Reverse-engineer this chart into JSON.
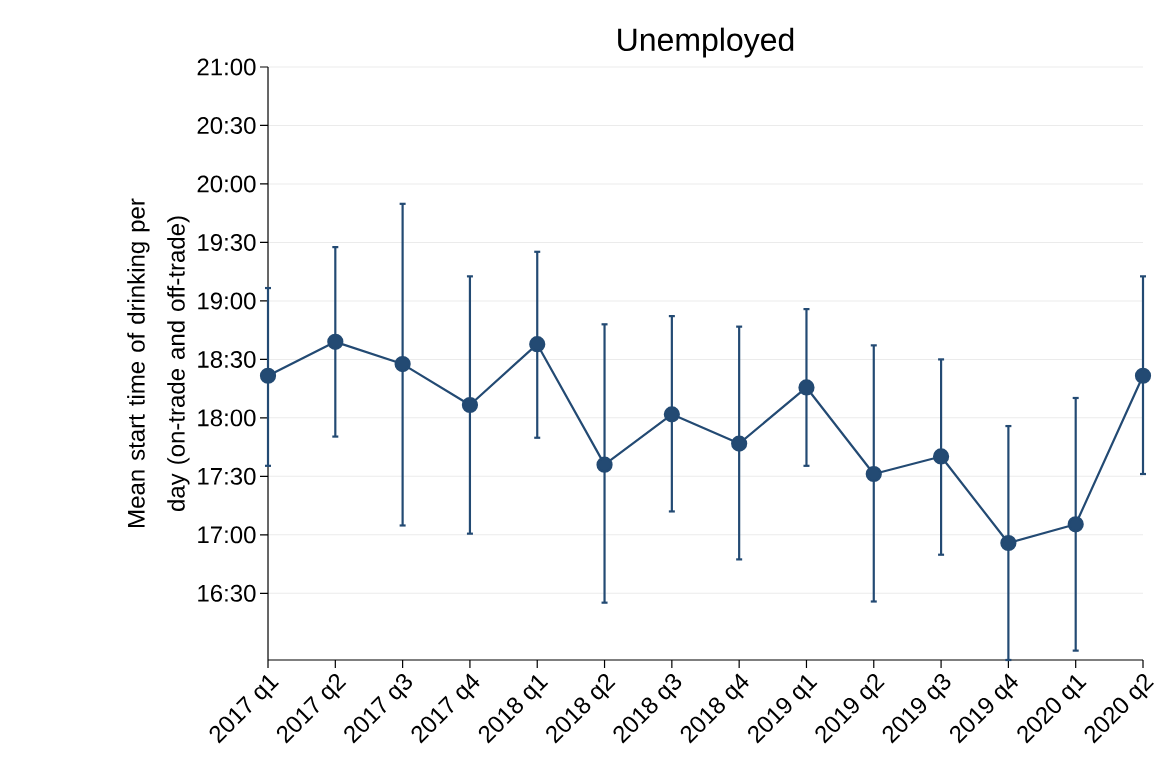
{
  "chart_data": {
    "type": "line",
    "title": "Unemployed",
    "ylabel": "Mean start time of drinking per day (on-trade and off-trade)",
    "categories": [
      "2017 q1",
      "2017 q2",
      "2017 q3",
      "2017 q4",
      "2018 q1",
      "2018 q2",
      "2018 q3",
      "2018 q4",
      "2019 q1",
      "2019 q2",
      "2019 q3",
      "2019 q4",
      "2020 q1",
      "2020 q2"
    ],
    "series": [
      {
        "color": "#234a73",
        "values": [
          18.36,
          18.65,
          18.46,
          18.11,
          18.63,
          17.6,
          18.03,
          17.78,
          18.26,
          17.52,
          17.67,
          16.93,
          17.09,
          18.36
        ],
        "errors": [
          [
            17.59,
            19.11
          ],
          [
            17.84,
            19.46
          ],
          [
            17.08,
            19.83
          ],
          [
            17.01,
            19.21
          ],
          [
            17.83,
            19.42
          ],
          [
            16.42,
            18.8
          ],
          [
            17.2,
            18.87
          ],
          [
            16.79,
            18.78
          ],
          [
            17.59,
            18.93
          ],
          [
            16.43,
            18.62
          ],
          [
            16.83,
            18.5
          ],
          [
            15.93,
            17.93
          ],
          [
            16.01,
            18.17
          ],
          [
            17.52,
            19.21
          ]
        ]
      }
    ],
    "ylim": [
      15.93,
      21
    ],
    "yticks": [
      {
        "value": 16.5,
        "label": "16:30"
      },
      {
        "value": 17,
        "label": "17:00"
      },
      {
        "value": 17.5,
        "label": "17:30"
      },
      {
        "value": 18,
        "label": "18:00"
      },
      {
        "value": 18.5,
        "label": "18:30"
      },
      {
        "value": 19,
        "label": "19:00"
      },
      {
        "value": 19.5,
        "label": "19:30"
      },
      {
        "value": 20,
        "label": "20:00"
      },
      {
        "value": 20.5,
        "label": "20:30"
      },
      {
        "value": 21,
        "label": "21:00"
      }
    ],
    "grid": "y",
    "marker": "circle",
    "line_style": "solid"
  }
}
